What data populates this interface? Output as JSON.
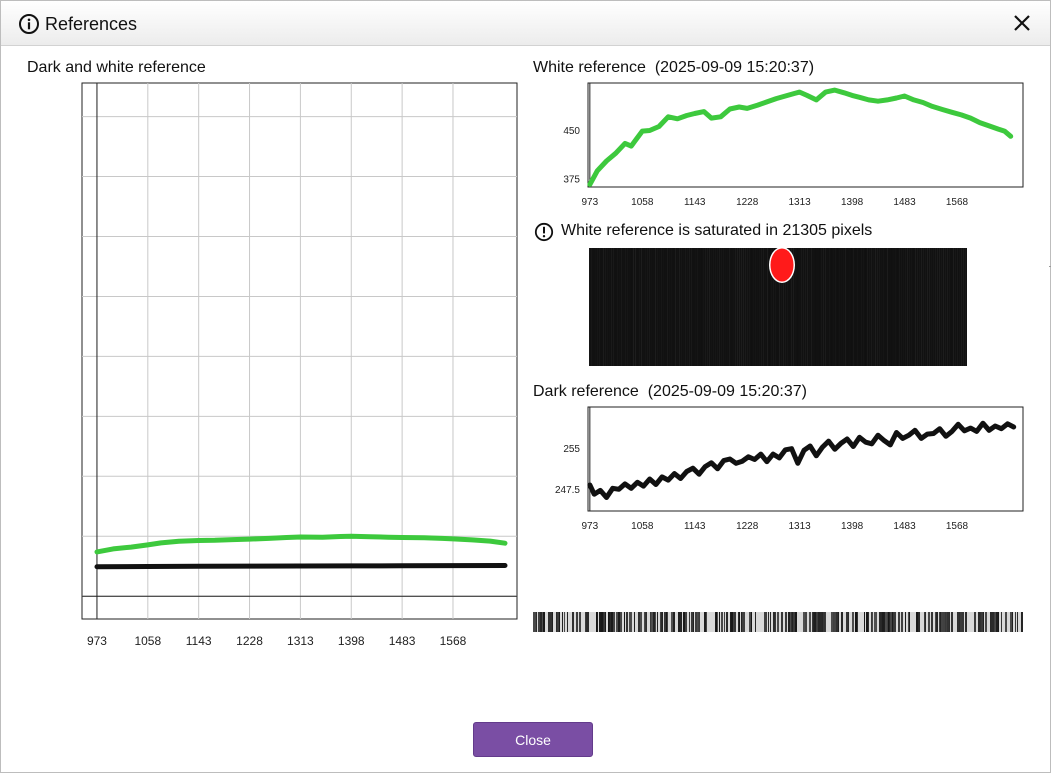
{
  "window": {
    "title": "References",
    "info_icon": "info-circle-icon",
    "close_icon": "close-icon"
  },
  "left_panel": {
    "title": "Dark and white reference"
  },
  "white_panel": {
    "title": "White reference  (2025-09-09 15:20:37)"
  },
  "warning": {
    "icon": "exclamation-circle-icon",
    "text": "White reference is saturated in 21305 pixels"
  },
  "saturation_image": {
    "background_color": "#111111",
    "saturated_color": "#ff1a1a"
  },
  "dark_panel": {
    "title": "Dark reference  (2025-09-09 15:20:37)"
  },
  "footer": {
    "close_label": "Close",
    "button_color": "#7a4ea4"
  },
  "chart_data": [
    {
      "type": "line",
      "title": "Dark and white reference",
      "xlim": [
        948,
        1675
      ],
      "ylim": [
        -190,
        4280
      ],
      "x_ticks": [
        973,
        1058,
        1143,
        1228,
        1313,
        1398,
        1483,
        1568
      ],
      "y_ticks": [
        0,
        500,
        1000,
        1500,
        2000,
        2500,
        3000,
        3500,
        4000
      ],
      "grid": true,
      "series": [
        {
          "color": "#3dc93d",
          "x": [
            973,
            1000,
            1030,
            1058,
            1080,
            1110,
            1143,
            1170,
            1200,
            1228,
            1260,
            1290,
            1313,
            1350,
            1380,
            1398,
            1430,
            1460,
            1483,
            1520,
            1550,
            1568,
            1600,
            1630,
            1655
          ],
          "y": [
            370,
            395,
            410,
            428,
            445,
            458,
            465,
            466,
            472,
            476,
            482,
            490,
            494,
            492,
            498,
            500,
            496,
            492,
            490,
            488,
            482,
            478,
            470,
            460,
            442
          ]
        },
        {
          "color": "#111111",
          "x": [
            973,
            1058,
            1143,
            1228,
            1313,
            1398,
            1483,
            1568,
            1655
          ],
          "y": [
            246,
            248,
            250,
            251,
            252,
            253,
            254,
            255,
            256
          ]
        }
      ]
    },
    {
      "type": "line",
      "title": "White reference  (2025-09-09 15:20:37)",
      "xlim": [
        970,
        1675
      ],
      "ylim": [
        362,
        522
      ],
      "x_ticks": [
        973,
        1058,
        1143,
        1228,
        1313,
        1398,
        1483,
        1568
      ],
      "y_ticks": [
        375,
        450
      ],
      "grid": false,
      "series": [
        {
          "color": "#3dc93d",
          "x": [
            973,
            985,
            1000,
            1015,
            1030,
            1040,
            1058,
            1070,
            1085,
            1100,
            1115,
            1130,
            1143,
            1158,
            1170,
            1185,
            1200,
            1215,
            1228,
            1245,
            1260,
            1275,
            1290,
            1305,
            1313,
            1325,
            1340,
            1355,
            1370,
            1385,
            1398,
            1410,
            1425,
            1440,
            1455,
            1470,
            1483,
            1498,
            1513,
            1528,
            1545,
            1560,
            1575,
            1590,
            1605,
            1620,
            1635,
            1645,
            1655
          ],
          "y": [
            366,
            387,
            402,
            414,
            429,
            425,
            448,
            449,
            455,
            470,
            467,
            472,
            475,
            478,
            468,
            470,
            482,
            485,
            483,
            488,
            493,
            498,
            502,
            506,
            508,
            503,
            496,
            508,
            511,
            507,
            503,
            500,
            496,
            494,
            496,
            499,
            502,
            496,
            492,
            486,
            481,
            477,
            473,
            468,
            461,
            456,
            451,
            448,
            440
          ]
        }
      ]
    },
    {
      "type": "line",
      "title": "Dark reference  (2025-09-09 15:20:37)",
      "xlim": [
        970,
        1675
      ],
      "ylim": [
        243.4,
        262.6
      ],
      "x_ticks": [
        973,
        1058,
        1143,
        1228,
        1313,
        1398,
        1483,
        1568
      ],
      "y_ticks": [
        247.5,
        255
      ],
      "grid": false,
      "series": [
        {
          "color": "#111111",
          "x": [
            973,
            980,
            990,
            1000,
            1010,
            1020,
            1030,
            1040,
            1050,
            1060,
            1070,
            1080,
            1090,
            1100,
            1110,
            1120,
            1130,
            1140,
            1150,
            1160,
            1170,
            1180,
            1190,
            1200,
            1210,
            1220,
            1230,
            1240,
            1250,
            1260,
            1270,
            1280,
            1290,
            1300,
            1310,
            1320,
            1330,
            1340,
            1350,
            1360,
            1370,
            1380,
            1390,
            1400,
            1410,
            1420,
            1430,
            1440,
            1450,
            1460,
            1470,
            1480,
            1490,
            1500,
            1510,
            1520,
            1530,
            1540,
            1550,
            1560,
            1570,
            1580,
            1590,
            1600,
            1610,
            1620,
            1630,
            1640,
            1650,
            1660
          ],
          "y": [
            248.2,
            246.5,
            247.2,
            245.9,
            247.6,
            247.4,
            248.4,
            247.6,
            248.7,
            248.0,
            249.3,
            248.3,
            249.7,
            249.1,
            250.3,
            249.4,
            250.7,
            251.3,
            250.2,
            251.6,
            252.3,
            251.2,
            252.7,
            253.0,
            252.2,
            252.6,
            253.4,
            252.9,
            253.9,
            252.5,
            253.9,
            253.2,
            254.7,
            254.9,
            252.2,
            254.6,
            255.4,
            253.6,
            255.2,
            256.3,
            254.8,
            255.9,
            256.7,
            255.3,
            257.0,
            256.1,
            255.8,
            257.4,
            256.4,
            255.6,
            257.9,
            256.8,
            257.4,
            258.3,
            256.8,
            257.6,
            257.7,
            258.6,
            257.2,
            258.1,
            259.4,
            258.2,
            258.7,
            258.1,
            259.6,
            258.3,
            259.1,
            258.6,
            259.5,
            258.9
          ]
        }
      ]
    }
  ]
}
